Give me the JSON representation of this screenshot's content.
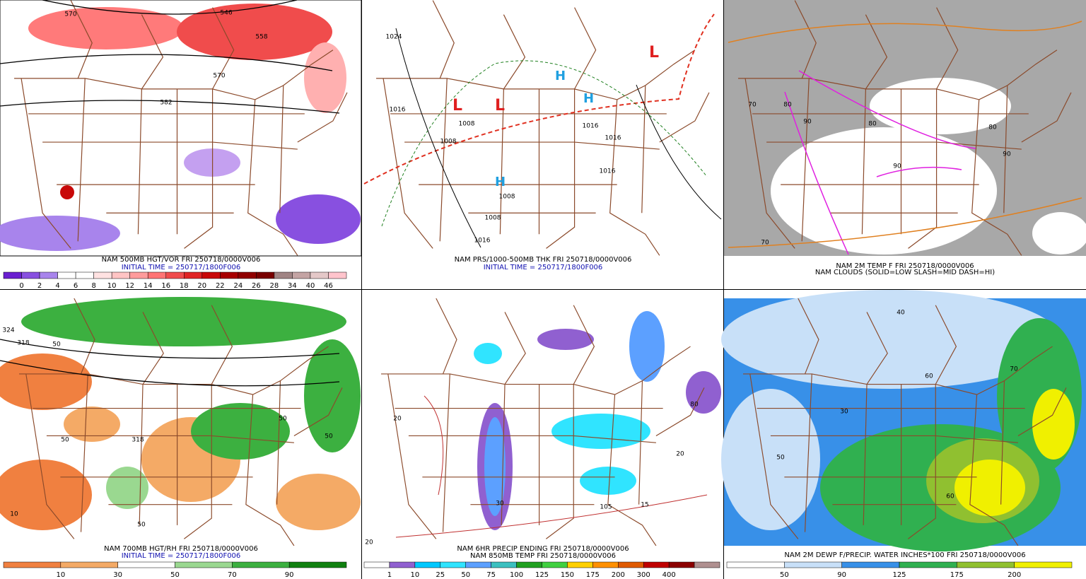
{
  "panels": [
    {
      "captions": [
        "NAM 500MB HGT/VOR FRI 250718/0000V006",
        "INITIAL TIME = 250717/1800F006"
      ],
      "caption_colors": [
        "#000000",
        "#1010b0"
      ],
      "colorbar": {
        "colors": [
          "#6a1fd0",
          "#8850e0",
          "#a884ec",
          "#ffffff",
          "#ffffff",
          "#ffe2e2",
          "#ffc4c4",
          "#ff9c9c",
          "#ff7474",
          "#f04c4c",
          "#e02424",
          "#c80808",
          "#a80000",
          "#900000",
          "#780000",
          "#a08484",
          "#c4a4a4",
          "#e4c8c8",
          "#ffc4cc"
        ],
        "labels": [
          "0",
          "2",
          "4",
          "6",
          "8",
          "10",
          "12",
          "14",
          "16",
          "18",
          "20",
          "22",
          "24",
          "26",
          "28",
          "34",
          "40",
          "46"
        ]
      },
      "map_labels": [
        "570",
        "558",
        "582",
        "570",
        "546"
      ]
    },
    {
      "captions": [
        "NAM PRS/1000-500MB THK FRI 250718/0000V006",
        "INITIAL TIME = 250717/1800F006"
      ],
      "caption_colors": [
        "#000000",
        "#1010b0"
      ],
      "map_labels": [
        "1024",
        "1016",
        "1008",
        "1016",
        "1016",
        "1008",
        "1008",
        "1008",
        "1016",
        "1016"
      ]
    },
    {
      "captions": [
        "NAM 2M TEMP F FRI 250718/0000V006",
        "NAM CLOUDS (SOLID=LOW SLASH=MID DASH=HI)"
      ],
      "caption_colors": [
        "#000000",
        "#000000"
      ],
      "map_labels": [
        "80",
        "90",
        "80",
        "90",
        "70",
        "80",
        "90",
        "70"
      ]
    },
    {
      "captions": [
        "NAM 700MB HGT/RH FRI 250718/0000V006",
        "INITIAL TIME = 250717/1800F006"
      ],
      "caption_colors": [
        "#000000",
        "#1010b0"
      ],
      "colorbar": {
        "colors": [
          "#f08040",
          "#f4aa66",
          "#ffffff",
          "#9ad890",
          "#3cb040",
          "#108010"
        ],
        "labels": [
          "10",
          "30",
          "50",
          "70",
          "90"
        ]
      },
      "map_labels": [
        "324",
        "318",
        "50",
        "50",
        "318",
        "50",
        "50",
        "10",
        "50"
      ]
    },
    {
      "captions": [
        "NAM 6HR PRECIP ENDING FRI 250718/0000V006",
        "NAM 850MB TEMP FRI 250718/0000V006"
      ],
      "caption_colors": [
        "#000000",
        "#000000"
      ],
      "colorbar": {
        "colors": [
          "#ffffff",
          "#9060d0",
          "#00c8ff",
          "#30e4ff",
          "#5ca0ff",
          "#3cc0c0",
          "#20a020",
          "#40d040",
          "#ffd000",
          "#ff9000",
          "#e05a00",
          "#c00000",
          "#8b0000",
          "#b09090"
        ],
        "labels": [
          "1",
          "10",
          "25",
          "50",
          "75",
          "100",
          "125",
          "150",
          "175",
          "200",
          "300",
          "400"
        ]
      },
      "map_labels": [
        "20",
        "20",
        "30",
        "105",
        "15",
        "20",
        "80"
      ]
    },
    {
      "captions": [
        "NAM 2M DEWP F/PRECIP. WATER INCHES*100 FRI 250718/0000V006"
      ],
      "caption_colors": [
        "#000000"
      ],
      "colorbar": {
        "colors": [
          "#ffffff",
          "#c8e0f8",
          "#3890e8",
          "#30b050",
          "#90c030",
          "#f0f000"
        ],
        "labels": [
          "50",
          "90",
          "125",
          "175",
          "200"
        ]
      },
      "map_labels": [
        "50",
        "40",
        "30",
        "60",
        "70",
        "60"
      ]
    }
  ]
}
